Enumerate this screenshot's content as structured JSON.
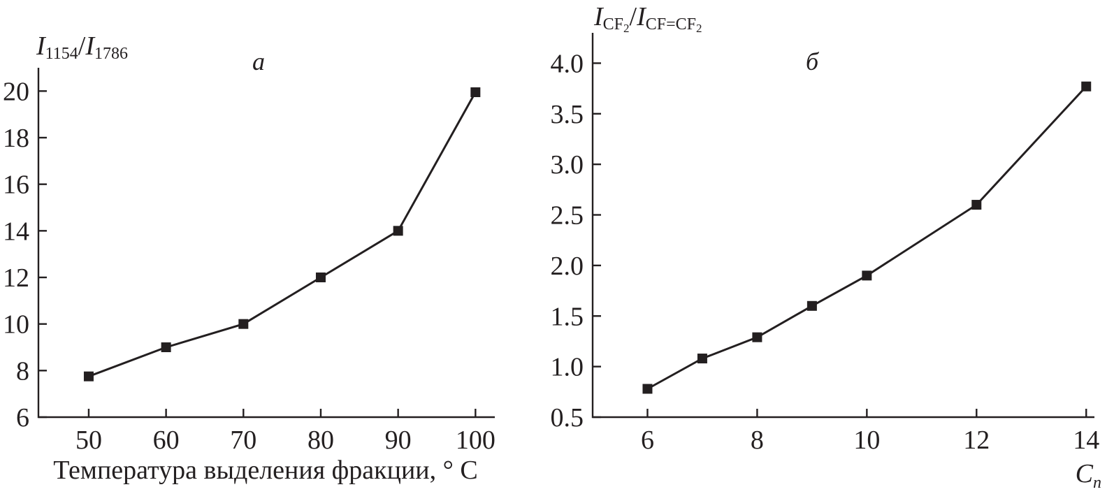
{
  "chart_data": [
    {
      "type": "line",
      "panel": "a",
      "ylabel_parts": [
        "I",
        "1154",
        "/",
        "I",
        "1786"
      ],
      "xlabel": "Температура выделения фракции, ° С",
      "x": [
        50,
        60,
        70,
        80,
        90,
        100
      ],
      "values": [
        7.75,
        9.0,
        10.0,
        12.0,
        14.0,
        19.95
      ],
      "xticks": [
        50,
        60,
        70,
        80,
        90,
        100
      ],
      "yticks": [
        6,
        8,
        10,
        12,
        14,
        16,
        18,
        20
      ],
      "xlim": [
        43.5,
        102.5
      ],
      "ylim": [
        6,
        21
      ],
      "marker": "square",
      "color": "#231f20",
      "grid": false
    },
    {
      "type": "line",
      "panel": "б",
      "ylabel_parts": [
        "I",
        "CF",
        "2",
        "/",
        "I",
        "CF=CF",
        "2"
      ],
      "xlabel_parts": [
        "C",
        "n"
      ],
      "x": [
        6,
        7,
        8,
        9,
        10,
        12,
        14
      ],
      "values": [
        0.78,
        1.08,
        1.29,
        1.6,
        1.9,
        2.6,
        3.77
      ],
      "xticks": [
        6,
        8,
        10,
        12,
        14
      ],
      "ytick_labels": [
        "0.5",
        "1.0",
        "1.5",
        "2.0",
        "2.5",
        "3.0",
        "3.5",
        "4.0"
      ],
      "yticks": [
        0.5,
        1.0,
        1.5,
        2.0,
        2.5,
        3.0,
        3.5,
        4.0
      ],
      "xlim": [
        5.0,
        14.15
      ],
      "ylim": [
        0.5,
        4.3
      ],
      "marker": "square",
      "color": "#231f20",
      "grid": false
    }
  ]
}
